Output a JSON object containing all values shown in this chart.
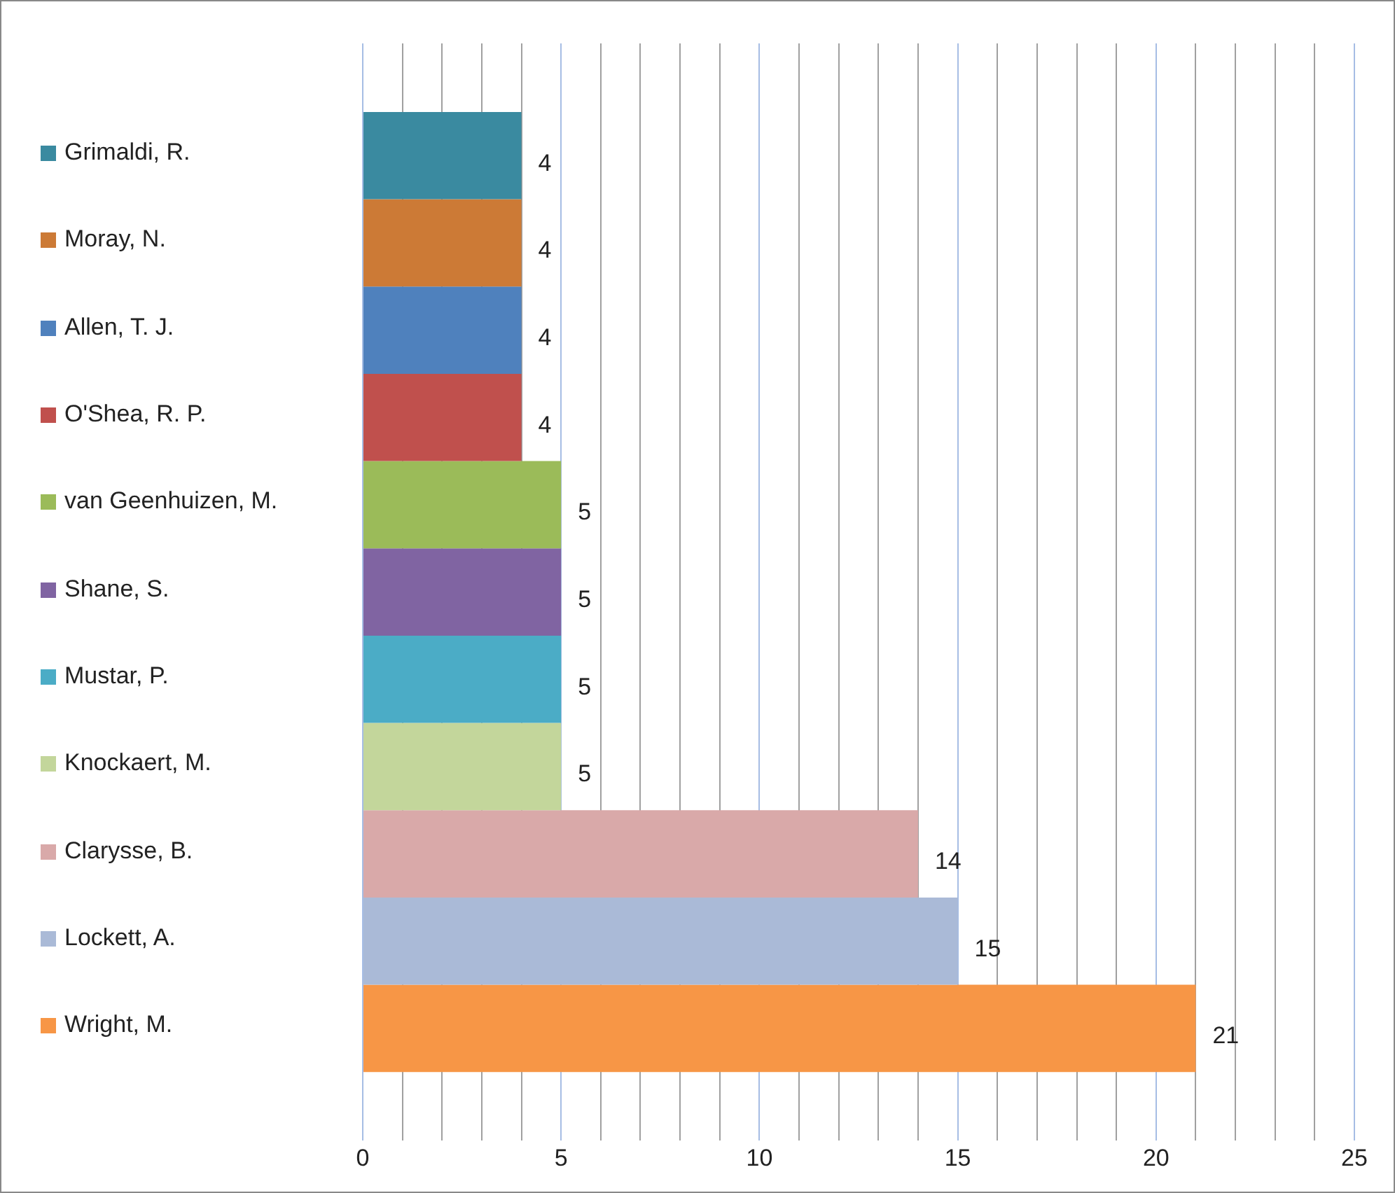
{
  "chart_data": {
    "type": "bar",
    "orientation": "horizontal",
    "categories": [
      null
    ],
    "series": [
      {
        "name": "Grimaldi, R.",
        "color": "#3a8aa0",
        "values": [
          4
        ]
      },
      {
        "name": "Moray, N.",
        "color": "#cc7a36",
        "values": [
          4
        ]
      },
      {
        "name": "Allen, T. J.",
        "color": "#4f81bd",
        "values": [
          4
        ]
      },
      {
        "name": "O'Shea, R. P.",
        "color": "#c0504d",
        "values": [
          4
        ]
      },
      {
        "name": "van Geenhuizen, M.",
        "color": "#9bbb59",
        "values": [
          5
        ]
      },
      {
        "name": "Shane, S.",
        "color": "#8064a2",
        "values": [
          5
        ]
      },
      {
        "name": "Mustar, P.",
        "color": "#4bacc6",
        "values": [
          5
        ]
      },
      {
        "name": "Knockaert, M.",
        "color": "#c3d69b",
        "values": [
          5
        ]
      },
      {
        "name": "Clarysse, B.",
        "color": "#d9a9a9",
        "values": [
          14
        ]
      },
      {
        "name": "Lockett, A.",
        "color": "#aabad7",
        "values": [
          15
        ]
      },
      {
        "name": "Wright, M.",
        "color": "#f79646",
        "values": [
          21
        ]
      }
    ],
    "xlim": [
      0,
      25
    ],
    "xticks": [
      0,
      {
        "value": 1,
        "label": null
      },
      {
        "value": 2,
        "label": null
      },
      {
        "value": 3,
        "label": null
      },
      {
        "value": 4,
        "label": null
      },
      5,
      {
        "value": 6,
        "label": null
      },
      {
        "value": 7,
        "label": null
      },
      {
        "value": 8,
        "label": null
      },
      {
        "value": 9,
        "label": null
      },
      10,
      {
        "value": 11,
        "label": null
      },
      {
        "value": 12,
        "label": null
      },
      {
        "value": 13,
        "label": null
      },
      {
        "value": 14,
        "label": null
      },
      15,
      {
        "value": 16,
        "label": null
      },
      {
        "value": 17,
        "label": null
      },
      {
        "value": 18,
        "label": null
      },
      {
        "value": 19,
        "label": null
      },
      20,
      {
        "value": 21,
        "label": null
      },
      {
        "value": 22,
        "label": null
      },
      {
        "value": 23,
        "label": null
      },
      {
        "value": 24,
        "label": null
      },
      25
    ],
    "grid": "x",
    "legend": "left",
    "data_labels": true
  }
}
